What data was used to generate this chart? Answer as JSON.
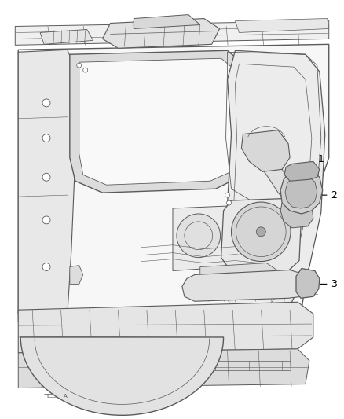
{
  "background_color": "#ffffff",
  "callout_color": "#000000",
  "label_positions": {
    "1": [
      0.885,
      0.605
    ],
    "2": [
      0.945,
      0.535
    ],
    "3": [
      0.945,
      0.438
    ]
  },
  "callout_line_1": [
    [
      0.885,
      0.605
    ],
    [
      0.74,
      0.625
    ]
  ],
  "callout_line_2": [
    [
      0.935,
      0.535
    ],
    [
      0.82,
      0.525
    ]
  ],
  "callout_line_3": [
    [
      0.935,
      0.438
    ],
    [
      0.82,
      0.445
    ]
  ],
  "figsize": [
    4.38,
    5.33
  ],
  "dpi": 100,
  "line_color": "#5a5a5a",
  "fill_light": "#f2f2f2",
  "fill_mid": "#e0e0e0",
  "fill_dark": "#c8c8c8"
}
